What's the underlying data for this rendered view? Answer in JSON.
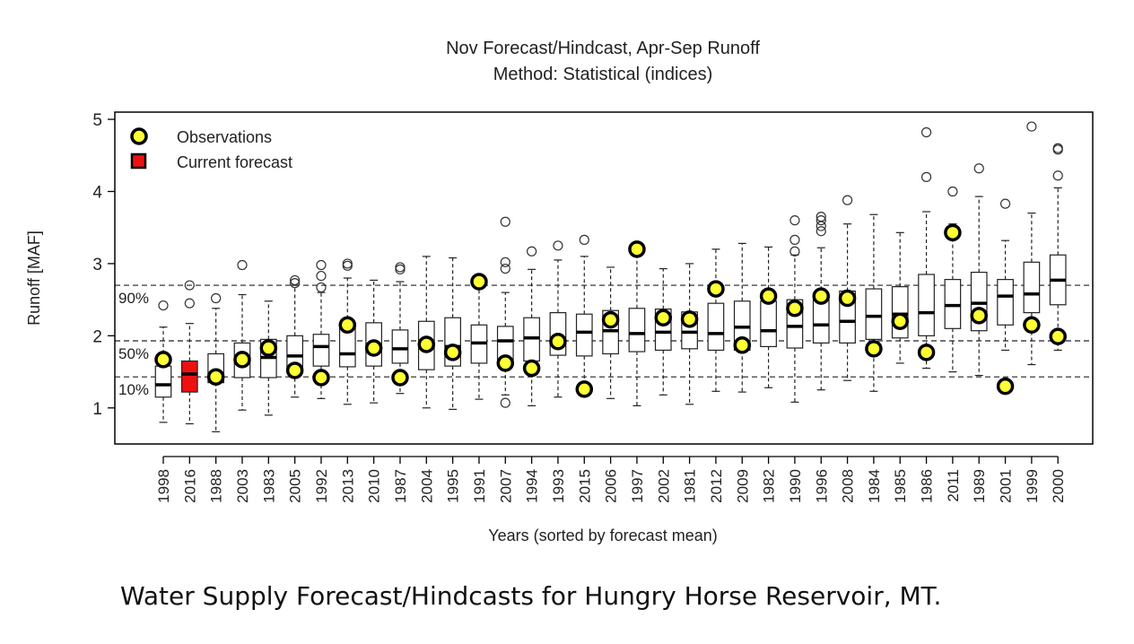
{
  "caption": "Water Supply Forecast/Hindcasts for Hungry Horse Reservoir, MT.",
  "chart_data": {
    "type": "box",
    "title": "Nov Forecast/Hindcast, Apr-Sep Runoff",
    "subtitle": "Method: Statistical (indices)",
    "xlabel": "Years (sorted by forecast mean)",
    "ylabel": "Runoff [MAF]",
    "ylim": [
      0.5,
      5.1
    ],
    "yticks": [
      1,
      2,
      3,
      4,
      5
    ],
    "legend": {
      "position": "top-left",
      "entries": [
        {
          "label": "Observations",
          "marker": "circle",
          "color": "#ffff33"
        },
        {
          "label": "Current forecast",
          "marker": "square",
          "color": "#ee1111"
        }
      ]
    },
    "reference_lines": [
      {
        "label": "90%",
        "value": 2.7
      },
      {
        "label": "50%",
        "value": 1.93
      },
      {
        "label": "10%",
        "value": 1.43
      }
    ],
    "current_forecast_year": "2016",
    "categories": [
      "1998",
      "2016",
      "1988",
      "2003",
      "1983",
      "2005",
      "1992",
      "2013",
      "2010",
      "1987",
      "2004",
      "1995",
      "1991",
      "2007",
      "1994",
      "1993",
      "2015",
      "2006",
      "1997",
      "2002",
      "1981",
      "2012",
      "2009",
      "1982",
      "1990",
      "1996",
      "2008",
      "1984",
      "1985",
      "1986",
      "2011",
      "1989",
      "2001",
      "1999",
      "2000"
    ],
    "boxes": [
      {
        "wlo": 0.8,
        "q1": 1.15,
        "med": 1.32,
        "q3": 1.58,
        "whi": 2.12,
        "outliers": [
          2.42
        ]
      },
      {
        "wlo": 0.78,
        "q1": 1.22,
        "med": 1.47,
        "q3": 1.65,
        "whi": 2.17,
        "outliers": [
          2.45,
          2.7
        ]
      },
      {
        "wlo": 0.67,
        "q1": 1.35,
        "med": 1.45,
        "q3": 1.75,
        "whi": 2.38,
        "outliers": [
          2.52
        ]
      },
      {
        "wlo": 0.97,
        "q1": 1.42,
        "med": 1.65,
        "q3": 1.9,
        "whi": 2.57,
        "outliers": [
          2.98
        ]
      },
      {
        "wlo": 0.9,
        "q1": 1.42,
        "med": 1.7,
        "q3": 1.95,
        "whi": 2.48,
        "outliers": []
      },
      {
        "wlo": 1.15,
        "q1": 1.5,
        "med": 1.72,
        "q3": 2.0,
        "whi": 2.7,
        "outliers": [
          2.73,
          2.77
        ]
      },
      {
        "wlo": 1.13,
        "q1": 1.58,
        "med": 1.85,
        "q3": 2.02,
        "whi": 2.6,
        "outliers": [
          2.67,
          2.83,
          2.98
        ]
      },
      {
        "wlo": 1.05,
        "q1": 1.57,
        "med": 1.75,
        "q3": 2.15,
        "whi": 2.8,
        "outliers": [
          2.97,
          3.0
        ]
      },
      {
        "wlo": 1.07,
        "q1": 1.58,
        "med": 1.85,
        "q3": 2.18,
        "whi": 2.77,
        "outliers": []
      },
      {
        "wlo": 1.2,
        "q1": 1.62,
        "med": 1.82,
        "q3": 2.08,
        "whi": 2.75,
        "outliers": [
          2.92,
          2.95
        ]
      },
      {
        "wlo": 1.0,
        "q1": 1.53,
        "med": 1.88,
        "q3": 2.2,
        "whi": 3.1,
        "outliers": []
      },
      {
        "wlo": 0.98,
        "q1": 1.58,
        "med": 1.85,
        "q3": 2.25,
        "whi": 3.08,
        "outliers": []
      },
      {
        "wlo": 1.12,
        "q1": 1.62,
        "med": 1.9,
        "q3": 2.15,
        "whi": 2.82,
        "outliers": []
      },
      {
        "wlo": 1.18,
        "q1": 1.63,
        "med": 1.93,
        "q3": 2.13,
        "whi": 2.6,
        "outliers": [
          1.07,
          2.93,
          3.02,
          3.58
        ]
      },
      {
        "wlo": 1.03,
        "q1": 1.65,
        "med": 1.97,
        "q3": 2.25,
        "whi": 2.92,
        "outliers": [
          3.17
        ]
      },
      {
        "wlo": 1.15,
        "q1": 1.73,
        "med": 1.95,
        "q3": 2.32,
        "whi": 3.05,
        "outliers": [
          3.25
        ]
      },
      {
        "wlo": 1.2,
        "q1": 1.72,
        "med": 2.05,
        "q3": 2.3,
        "whi": 3.1,
        "outliers": [
          3.33
        ]
      },
      {
        "wlo": 1.13,
        "q1": 1.75,
        "med": 2.07,
        "q3": 2.35,
        "whi": 2.95,
        "outliers": []
      },
      {
        "wlo": 1.03,
        "q1": 1.78,
        "med": 2.03,
        "q3": 2.38,
        "whi": 3.15,
        "outliers": []
      },
      {
        "wlo": 1.18,
        "q1": 1.8,
        "med": 2.05,
        "q3": 2.37,
        "whi": 2.93,
        "outliers": []
      },
      {
        "wlo": 1.05,
        "q1": 1.82,
        "med": 2.05,
        "q3": 2.33,
        "whi": 3.0,
        "outliers": []
      },
      {
        "wlo": 1.23,
        "q1": 1.8,
        "med": 2.03,
        "q3": 2.45,
        "whi": 3.2,
        "outliers": []
      },
      {
        "wlo": 1.22,
        "q1": 1.8,
        "med": 2.12,
        "q3": 2.48,
        "whi": 3.28,
        "outliers": []
      },
      {
        "wlo": 1.28,
        "q1": 1.85,
        "med": 2.07,
        "q3": 2.48,
        "whi": 3.23,
        "outliers": []
      },
      {
        "wlo": 1.08,
        "q1": 1.83,
        "med": 2.13,
        "q3": 2.5,
        "whi": 3.12,
        "outliers": [
          3.17,
          3.33,
          3.6
        ]
      },
      {
        "wlo": 1.25,
        "q1": 1.9,
        "med": 2.15,
        "q3": 2.55,
        "whi": 3.22,
        "outliers": [
          3.45,
          3.52,
          3.6,
          3.65
        ]
      },
      {
        "wlo": 1.38,
        "q1": 1.9,
        "med": 2.2,
        "q3": 2.62,
        "whi": 3.55,
        "outliers": [
          3.88
        ]
      },
      {
        "wlo": 1.23,
        "q1": 1.95,
        "med": 2.27,
        "q3": 2.65,
        "whi": 3.68,
        "outliers": []
      },
      {
        "wlo": 1.62,
        "q1": 1.97,
        "med": 2.3,
        "q3": 2.68,
        "whi": 3.43,
        "outliers": []
      },
      {
        "wlo": 1.55,
        "q1": 2.0,
        "med": 2.32,
        "q3": 2.85,
        "whi": 3.72,
        "outliers": [
          4.2,
          4.82
        ]
      },
      {
        "wlo": 1.5,
        "q1": 2.1,
        "med": 2.42,
        "q3": 2.78,
        "whi": 3.55,
        "outliers": [
          4.0
        ]
      },
      {
        "wlo": 1.45,
        "q1": 2.07,
        "med": 2.45,
        "q3": 2.88,
        "whi": 3.93,
        "outliers": [
          4.32
        ]
      },
      {
        "wlo": 1.8,
        "q1": 2.15,
        "med": 2.55,
        "q3": 2.78,
        "whi": 3.32,
        "outliers": [
          3.83
        ]
      },
      {
        "wlo": 1.6,
        "q1": 2.32,
        "med": 2.58,
        "q3": 3.02,
        "whi": 3.7,
        "outliers": [
          4.9
        ]
      },
      {
        "wlo": 1.8,
        "q1": 2.43,
        "med": 2.77,
        "q3": 3.12,
        "whi": 4.05,
        "outliers": [
          4.22,
          4.58,
          4.6
        ]
      }
    ],
    "observations": [
      1.67,
      null,
      1.43,
      1.67,
      1.83,
      1.52,
      1.42,
      2.15,
      1.83,
      1.42,
      1.88,
      1.77,
      2.75,
      1.62,
      1.55,
      1.92,
      1.26,
      2.22,
      3.2,
      2.25,
      2.23,
      2.65,
      1.87,
      2.55,
      2.38,
      2.55,
      2.52,
      1.82,
      2.2,
      1.77,
      3.43,
      2.28,
      1.3,
      2.15,
      1.99
    ]
  }
}
